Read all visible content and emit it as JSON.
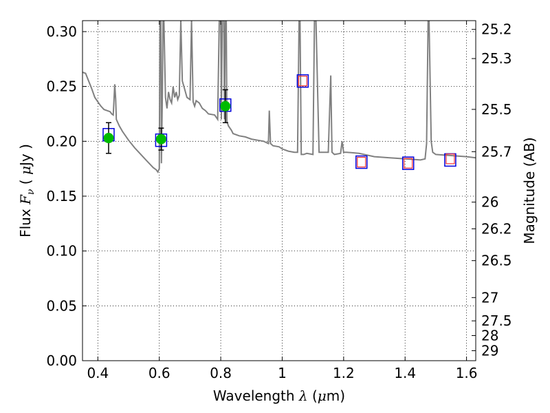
{
  "chart_data": {
    "type": "line",
    "title": "",
    "xlabel": "Wavelength  λ (μm)",
    "ylabel": "Flux  Fν  ( μJy )",
    "y2label": "Magnitude (AB)",
    "xlim": [
      0.35,
      1.63
    ],
    "ylim": [
      0.0,
      0.31
    ],
    "grid": true,
    "x_ticks": [
      0.4,
      0.6,
      0.8,
      1.0,
      1.2,
      1.4,
      1.6
    ],
    "x_tick_labels": [
      "0.4",
      "0.6",
      "0.8",
      "1",
      "1.2",
      "1.4",
      "1.6"
    ],
    "y_ticks": [
      0.0,
      0.05,
      0.1,
      0.15,
      0.2,
      0.25,
      0.3
    ],
    "y_tick_labels": [
      "0.00",
      "0.05",
      "0.10",
      "0.15",
      "0.20",
      "0.25",
      "0.30"
    ],
    "y2_ticks": [
      25.2,
      25.3,
      25.5,
      25.7,
      26,
      26.2,
      26.5,
      27,
      27.5,
      28,
      29
    ],
    "y2_tick_labels": [
      "25.2",
      "25.3",
      "25.5",
      "25.7",
      "26",
      "26.2",
      "26.5",
      "27",
      "27.5",
      "28",
      "29"
    ],
    "model_spectrum": {
      "color": "#808080",
      "x": [
        0.35,
        0.36,
        0.37,
        0.38,
        0.39,
        0.4,
        0.41,
        0.42,
        0.43,
        0.44,
        0.445,
        0.45,
        0.452,
        0.455,
        0.458,
        0.46,
        0.47,
        0.48,
        0.5,
        0.52,
        0.54,
        0.56,
        0.58,
        0.59,
        0.595,
        0.6,
        0.602,
        0.605,
        0.607,
        0.61,
        0.612,
        0.615,
        0.62,
        0.625,
        0.63,
        0.635,
        0.64,
        0.645,
        0.65,
        0.655,
        0.66,
        0.665,
        0.67,
        0.675,
        0.68,
        0.69,
        0.7,
        0.705,
        0.71,
        0.715,
        0.72,
        0.73,
        0.74,
        0.75,
        0.76,
        0.78,
        0.79,
        0.795,
        0.8,
        0.802,
        0.805,
        0.81,
        0.812,
        0.815,
        0.818,
        0.82,
        0.825,
        0.83,
        0.835,
        0.84,
        0.86,
        0.88,
        0.9,
        0.92,
        0.94,
        0.955,
        0.958,
        0.962,
        0.97,
        0.99,
        1.0,
        1.02,
        1.04,
        1.05,
        1.055,
        1.058,
        1.062,
        1.07,
        1.08,
        1.1,
        1.105,
        1.11,
        1.12,
        1.15,
        1.158,
        1.162,
        1.17,
        1.19,
        1.195,
        1.2,
        1.21,
        1.25,
        1.3,
        1.35,
        1.4,
        1.45,
        1.465,
        1.47,
        1.475,
        1.478,
        1.485,
        1.49,
        1.5,
        1.55,
        1.6,
        1.63
      ],
      "y": [
        0.263,
        0.262,
        0.255,
        0.248,
        0.24,
        0.236,
        0.232,
        0.229,
        0.228,
        0.227,
        0.225,
        0.224,
        0.235,
        0.252,
        0.238,
        0.22,
        0.214,
        0.209,
        0.201,
        0.194,
        0.188,
        0.182,
        0.176,
        0.174,
        0.172,
        0.175,
        0.31,
        0.31,
        0.18,
        0.245,
        0.31,
        0.31,
        0.24,
        0.23,
        0.245,
        0.238,
        0.235,
        0.25,
        0.24,
        0.245,
        0.238,
        0.242,
        0.31,
        0.255,
        0.25,
        0.24,
        0.238,
        0.31,
        0.236,
        0.232,
        0.237,
        0.235,
        0.23,
        0.228,
        0.225,
        0.224,
        0.22,
        0.31,
        0.31,
        0.22,
        0.31,
        0.31,
        0.22,
        0.31,
        0.31,
        0.218,
        0.214,
        0.212,
        0.21,
        0.207,
        0.205,
        0.204,
        0.202,
        0.201,
        0.2,
        0.198,
        0.228,
        0.198,
        0.196,
        0.195,
        0.193,
        0.191,
        0.19,
        0.19,
        0.31,
        0.31,
        0.188,
        0.188,
        0.189,
        0.188,
        0.31,
        0.31,
        0.19,
        0.19,
        0.26,
        0.19,
        0.188,
        0.189,
        0.2,
        0.19,
        0.19,
        0.189,
        0.186,
        0.185,
        0.184,
        0.183,
        0.184,
        0.198,
        0.31,
        0.31,
        0.2,
        0.19,
        0.188,
        0.187,
        0.186,
        0.185
      ]
    },
    "observed_points": {
      "name": "",
      "color": "#00bb00",
      "x": [
        0.435,
        0.606,
        0.815
      ],
      "y": [
        0.203,
        0.202,
        0.232
      ],
      "yerr": [
        0.014,
        0.01,
        0.015
      ]
    },
    "predicted_photometry_blue": {
      "color": "#0000dd",
      "x": [
        0.435,
        0.606,
        0.815,
        1.067,
        1.258,
        1.41,
        1.547
      ],
      "y": [
        0.206,
        0.201,
        0.233,
        0.255,
        0.181,
        0.18,
        0.183
      ]
    },
    "predicted_photometry_red": {
      "color": "#ff3333",
      "x": [
        1.067,
        1.258,
        1.41,
        1.547
      ],
      "y": [
        0.255,
        0.181,
        0.18,
        0.184
      ]
    }
  }
}
